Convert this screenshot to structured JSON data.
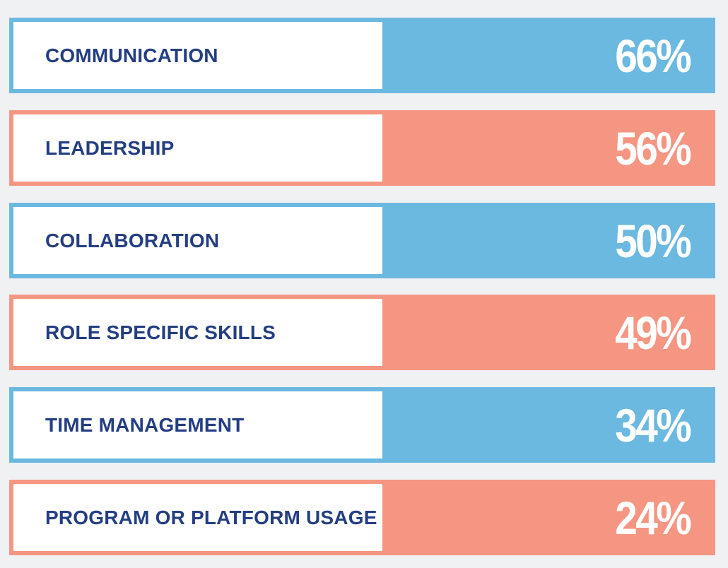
{
  "chart_data": {
    "type": "bar",
    "categories": [
      "COMMUNICATION",
      "LEADERSHIP",
      "COLLABORATION",
      "ROLE SPECIFIC SKILLS",
      "TIME MANAGEMENT",
      "PROGRAM OR PLATFORM USAGE"
    ],
    "values": [
      66,
      56,
      50,
      49,
      34,
      24
    ],
    "value_labels": [
      "66%",
      "56%",
      "50%",
      "49%",
      "34%",
      "24%"
    ],
    "unit": "%",
    "colors": [
      "#6bb8e0",
      "#f59682",
      "#6bb8e0",
      "#f59682",
      "#6bb8e0",
      "#f59682"
    ]
  }
}
